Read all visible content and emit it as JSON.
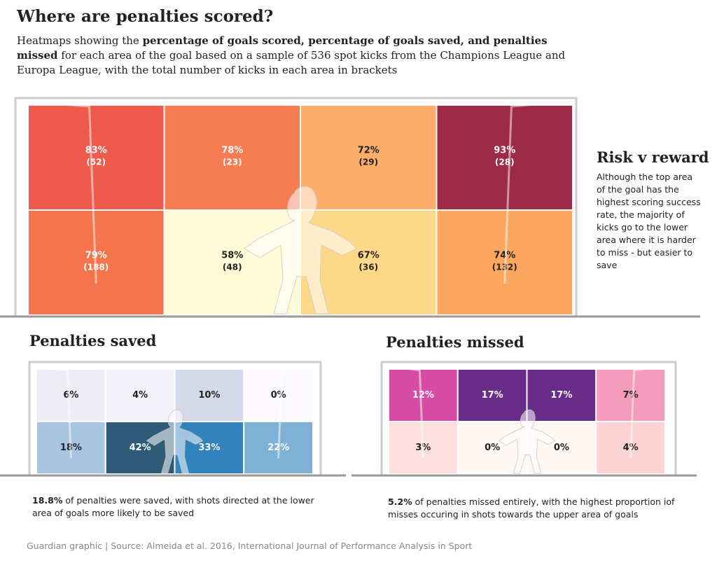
{
  "title": "Where are penalties scored?",
  "subtitle": [
    "Heatmaps showing the ",
    "percentage of goals scored, percentage of goals saved, and penalties missed",
    " for each area of the goal based on a sample of 536 spot kicks from the Champions League and Europa League, with the total number of kicks in each area in brackets"
  ],
  "sidebar": {
    "title": "Risk v reward",
    "text": "Although the top area of the goal has the highest scoring success rate, the majority of kicks go to the lower area where it is harder to miss - but easier to save"
  },
  "source": "Guardian graphic | Source: Almeida et al. 2016, International Journal of Performance Analysis in Sport",
  "chart_data": [
    {
      "type": "heatmap",
      "values": [
        83,
        78,
        72,
        93,
        79,
        58,
        67,
        74
      ],
      "value_labels": [
        "83%",
        "78%",
        "72%",
        "93%",
        "79%",
        "58%",
        "67%",
        "74%"
      ],
      "counts": [
        52,
        23,
        29,
        28,
        188,
        48,
        36,
        132
      ],
      "count_labels": [
        "(52)",
        "(23)",
        "(29)",
        "(28)",
        "(188)",
        "(48)",
        "(36)",
        "(132)"
      ],
      "colors": [
        "#ee5a4b",
        "#f57c53",
        "#fdae6b",
        "#9e2a4a",
        "#f4754c",
        "#fffbd8",
        "#fed889",
        "#fca75f"
      ]
    },
    {
      "type": "heatmap",
      "title": "Penalties saved",
      "values": [
        6,
        4,
        10,
        0,
        18,
        42,
        33,
        22
      ],
      "value_labels": [
        "6%",
        "4%",
        "10%",
        "0%",
        "18%",
        "42%",
        "33%",
        "22%"
      ],
      "colors": [
        "#eeecf5",
        "#f3f1f8",
        "#d6d9ea",
        "#fbf9fd",
        "#a9c4e0",
        "#2f5b78",
        "#3182bd",
        "#7fb0d6"
      ],
      "note": [
        "18.8%",
        " of penalties were saved, with shots directed at the lower area of goals more likely to be saved"
      ]
    },
    {
      "type": "heatmap",
      "title": "Penalties missed",
      "values": [
        12,
        17,
        17,
        7,
        3,
        0,
        0,
        4
      ],
      "value_labels": [
        "12%",
        "17%",
        "17%",
        "7%",
        "3%",
        "0%",
        "0%",
        "4%"
      ],
      "colors": [
        "#d64ca4",
        "#6a2c89",
        "#6a2c89",
        "#f59bbb",
        "#fde0dd",
        "#fff7f3",
        "#fff7f3",
        "#fdd3d3"
      ],
      "note": [
        "5.2%",
        " of penalties missed entirely, with the highest proportion iof misses occuring in shots towards the upper area of goals"
      ]
    }
  ]
}
